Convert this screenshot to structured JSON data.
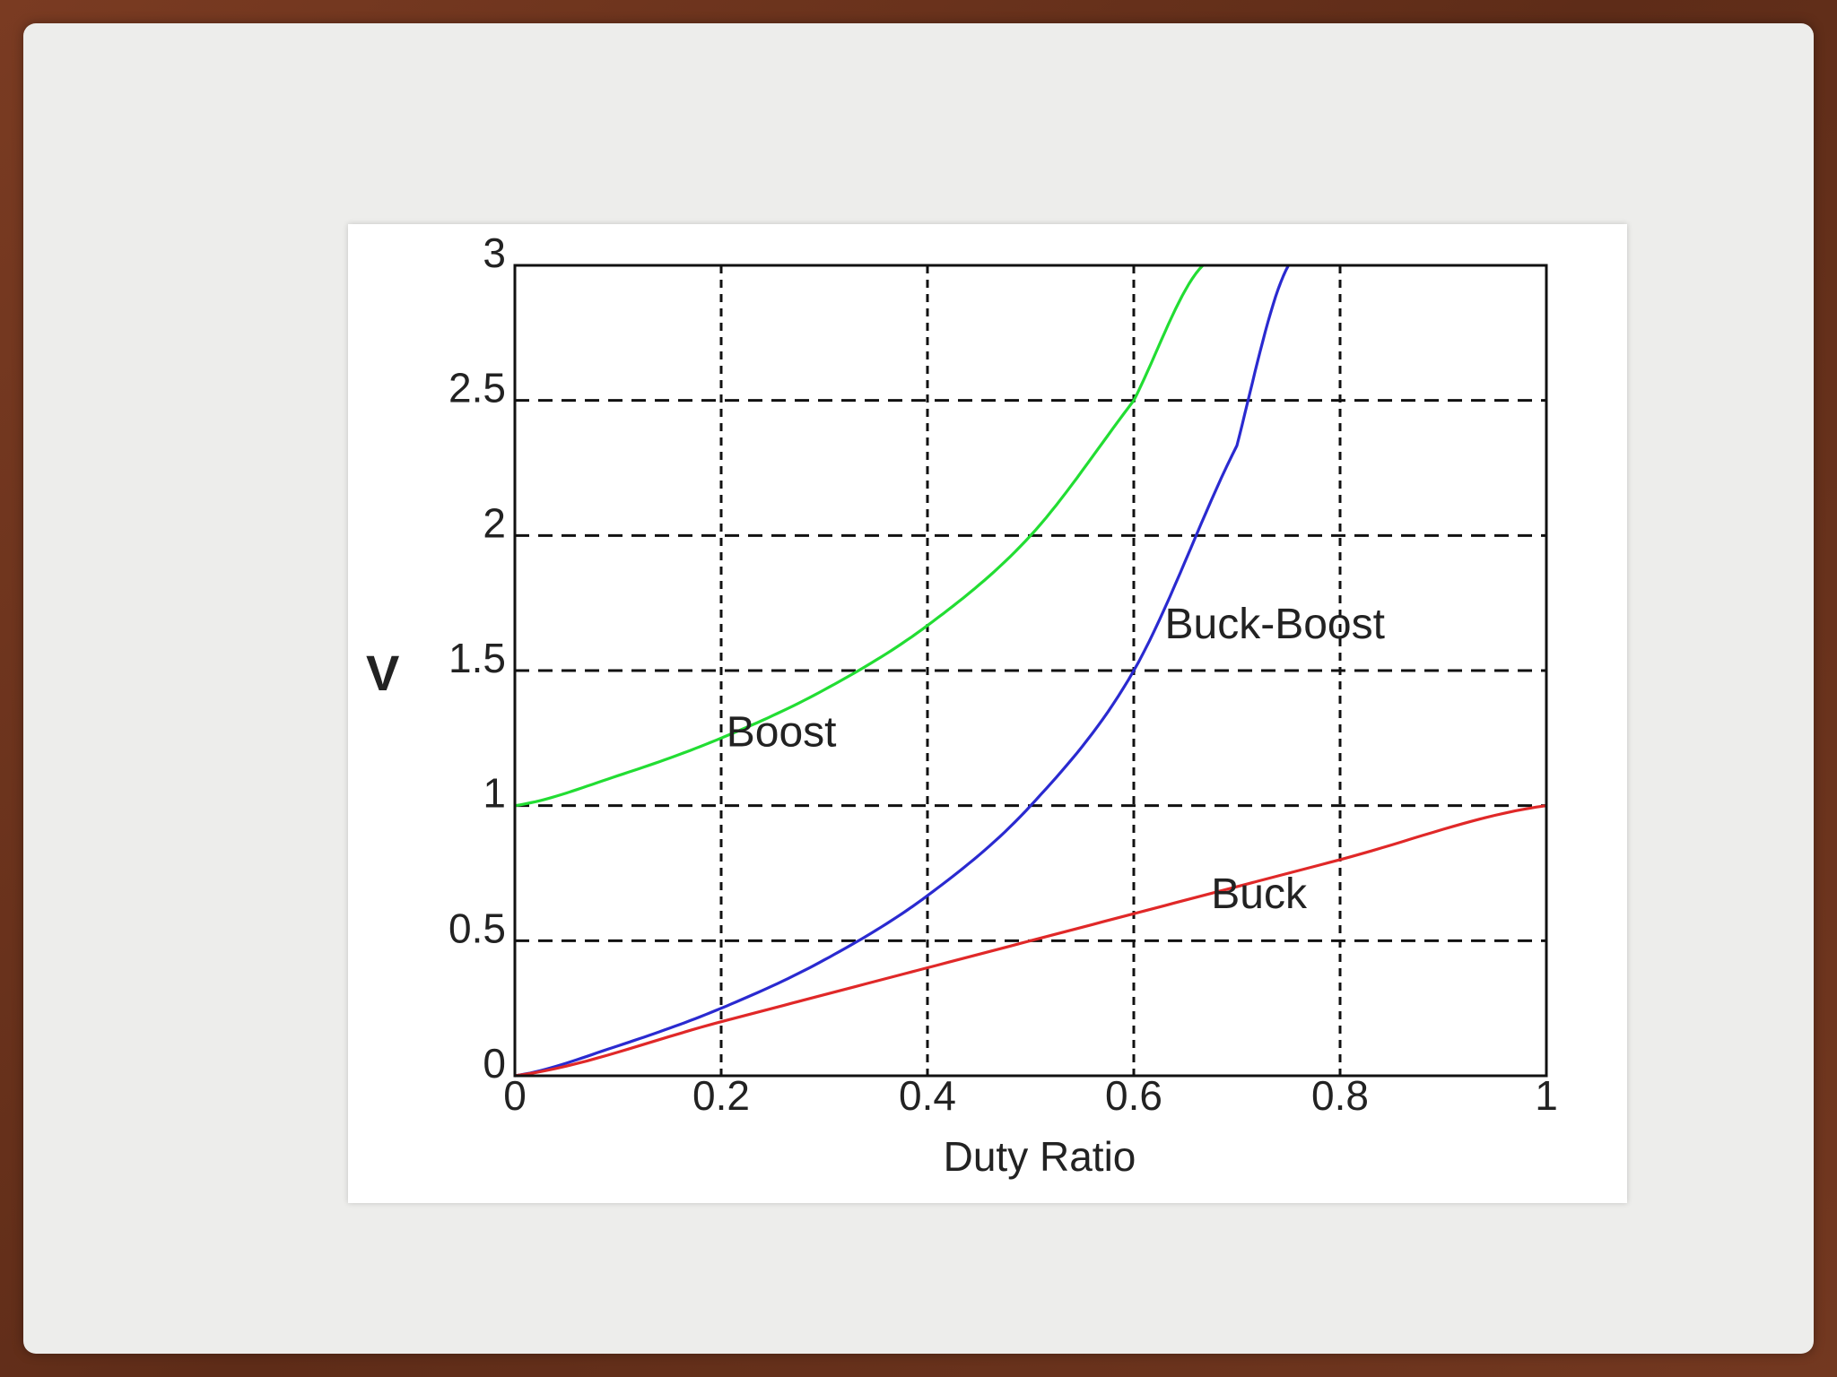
{
  "chart_data": {
    "type": "line",
    "title": "",
    "xlabel": "Duty Ratio",
    "ylabel": "V",
    "xlim": [
      0,
      1
    ],
    "ylim": [
      0,
      3
    ],
    "xticks": [
      "0",
      "0.2",
      "0.4",
      "0.6",
      "0.8",
      "1"
    ],
    "yticks": [
      "0",
      "0.5",
      "1",
      "1.5",
      "2",
      "2.5",
      "3"
    ],
    "grid": true,
    "series": [
      {
        "name": "Boost",
        "color": "#22dd33",
        "x": [
          0,
          0.1,
          0.2,
          0.3,
          0.4,
          0.5,
          0.6,
          0.667
        ],
        "y": [
          1,
          1.111,
          1.25,
          1.429,
          1.667,
          2.0,
          2.5,
          3.0
        ]
      },
      {
        "name": "Buck-Boost",
        "color": "#2a2ad0",
        "x": [
          0,
          0.1,
          0.2,
          0.3,
          0.4,
          0.5,
          0.6,
          0.7,
          0.75
        ],
        "y": [
          0,
          0.111,
          0.25,
          0.429,
          0.667,
          1.0,
          1.5,
          2.333,
          3.0
        ]
      },
      {
        "name": "Buck",
        "color": "#e02828",
        "x": [
          0,
          0.2,
          0.4,
          0.6,
          0.8,
          1.0
        ],
        "y": [
          0,
          0.2,
          0.4,
          0.6,
          0.8,
          1.0
        ]
      }
    ]
  }
}
